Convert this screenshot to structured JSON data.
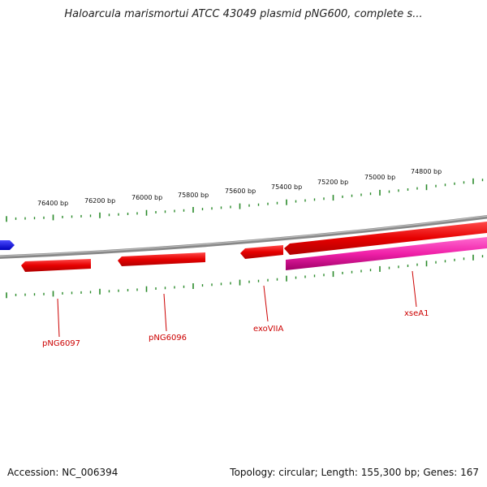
{
  "title": "Haloarcula marismortui ATCC 43049 plasmid pNG600, complete s...",
  "footer": {
    "accession": "Accession: NC_006394",
    "summary": "Topology: circular; Length: 155,300 bp; Genes: 167"
  },
  "scale_labels": [
    "76400 bp",
    "76200 bp",
    "76000 bp",
    "75800 bp",
    "75600 bp",
    "75400 bp",
    "75200 bp",
    "75000 bp",
    "74800 bp"
  ],
  "genes": [
    {
      "label": "pNG6097",
      "color": "#ee0000"
    },
    {
      "label": "pNG6096",
      "color": "#ee0000"
    },
    {
      "label": "exoVIIA",
      "color": "#ee0000"
    },
    {
      "label": "xseA1",
      "color": "#ee1199"
    }
  ],
  "colors": {
    "backbone": "#888888",
    "ticks": "#2a8a2a",
    "label_red": "#cc0000",
    "blue_feature": "#1111ee"
  }
}
